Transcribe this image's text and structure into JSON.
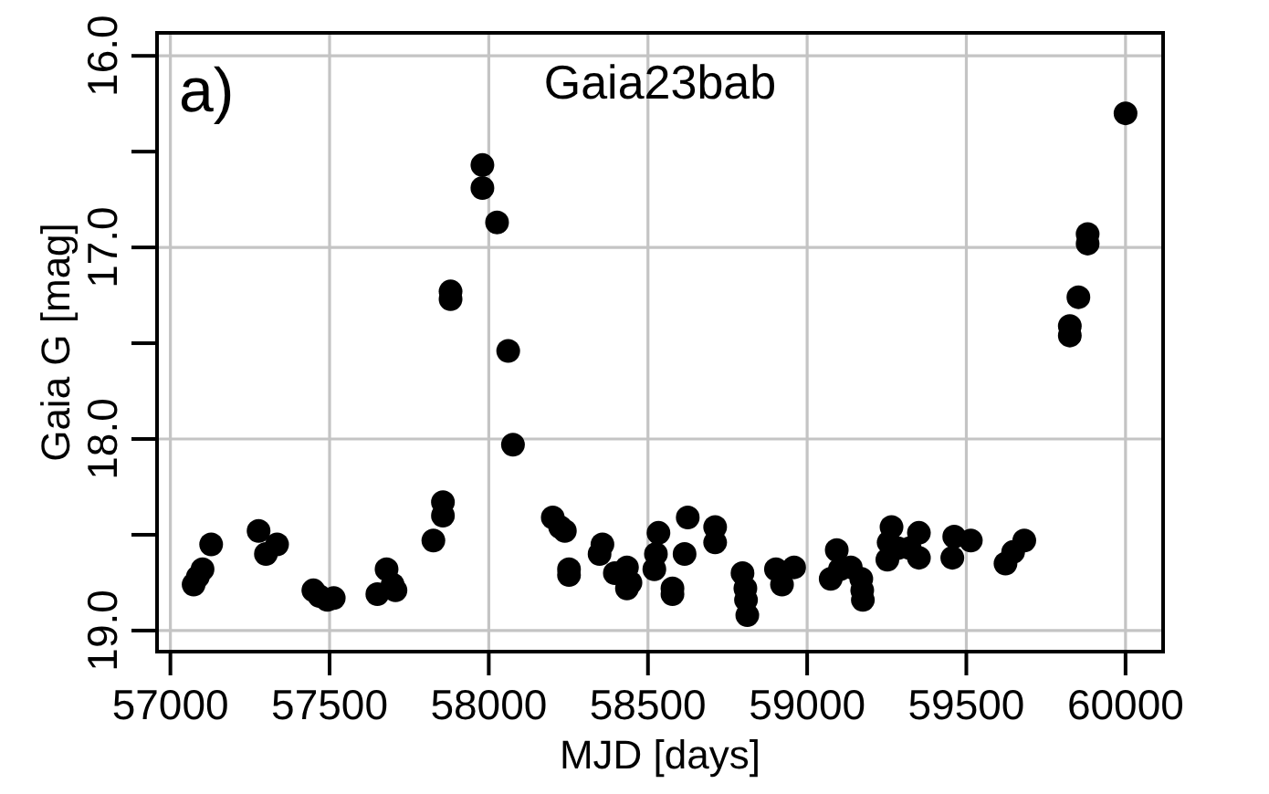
{
  "chart_data": {
    "type": "scatter",
    "xlabel": "MJD [days]",
    "ylabel": "Gaia G [mag]",
    "annotations": [
      "a)",
      "Gaia23bab"
    ],
    "x": [
      57073,
      57086,
      57101,
      57128,
      57277,
      57300,
      57335,
      57449,
      57468,
      57493,
      57513,
      57650,
      57679,
      57698,
      57707,
      57826,
      57856,
      57856,
      57880,
      57880,
      57980,
      57980,
      58026,
      58061,
      58076,
      58201,
      58224,
      58239,
      58252,
      58252,
      58348,
      58357,
      58396,
      58434,
      58434,
      58445,
      58520,
      58525,
      58533,
      58577,
      58577,
      58615,
      58625,
      58711,
      58711,
      58797,
      58806,
      58808,
      58812,
      58902,
      58921,
      58959,
      59074,
      59093,
      59103,
      59137,
      59170,
      59173,
      59175,
      59252,
      59256,
      59265,
      59285,
      59322,
      59351,
      59351,
      59456,
      59462,
      59514,
      59623,
      59647,
      59682,
      59825,
      59825,
      59852,
      59881,
      59881,
      60000
    ],
    "values": [
      18.76,
      18.72,
      18.68,
      18.55,
      18.48,
      18.6,
      18.55,
      18.79,
      18.82,
      18.84,
      18.83,
      18.81,
      18.68,
      18.76,
      18.79,
      18.53,
      18.33,
      18.4,
      17.23,
      17.27,
      16.57,
      16.69,
      16.87,
      17.54,
      18.03,
      18.41,
      18.46,
      18.48,
      18.68,
      18.71,
      18.6,
      18.55,
      18.7,
      18.67,
      18.78,
      18.75,
      18.68,
      18.6,
      18.49,
      18.78,
      18.81,
      18.6,
      18.41,
      18.46,
      18.54,
      18.7,
      18.78,
      18.84,
      18.92,
      18.68,
      18.76,
      18.67,
      18.73,
      18.58,
      18.68,
      18.67,
      18.73,
      18.79,
      18.84,
      18.63,
      18.54,
      18.46,
      18.57,
      18.57,
      18.49,
      18.62,
      18.62,
      18.51,
      18.53,
      18.65,
      18.59,
      18.53,
      17.41,
      17.46,
      17.26,
      16.93,
      16.98,
      16.3
    ],
    "color": "#000000",
    "marker": "circle",
    "xlim": [
      56958,
      60118
    ],
    "xticks": [
      57000,
      57500,
      58000,
      58500,
      59000,
      59500,
      60000
    ],
    "ylim": [
      19.11,
      15.88
    ],
    "yticks": [
      {
        "value": 16,
        "label": "16.0"
      },
      {
        "value": 16.5,
        "label": null
      },
      {
        "value": 17,
        "label": "17.0"
      },
      {
        "value": 17.5,
        "label": null
      },
      {
        "value": 18,
        "label": "18.0"
      },
      {
        "value": 18.5,
        "label": null
      },
      {
        "value": 19,
        "label": "19.0"
      }
    ],
    "grid": true
  }
}
